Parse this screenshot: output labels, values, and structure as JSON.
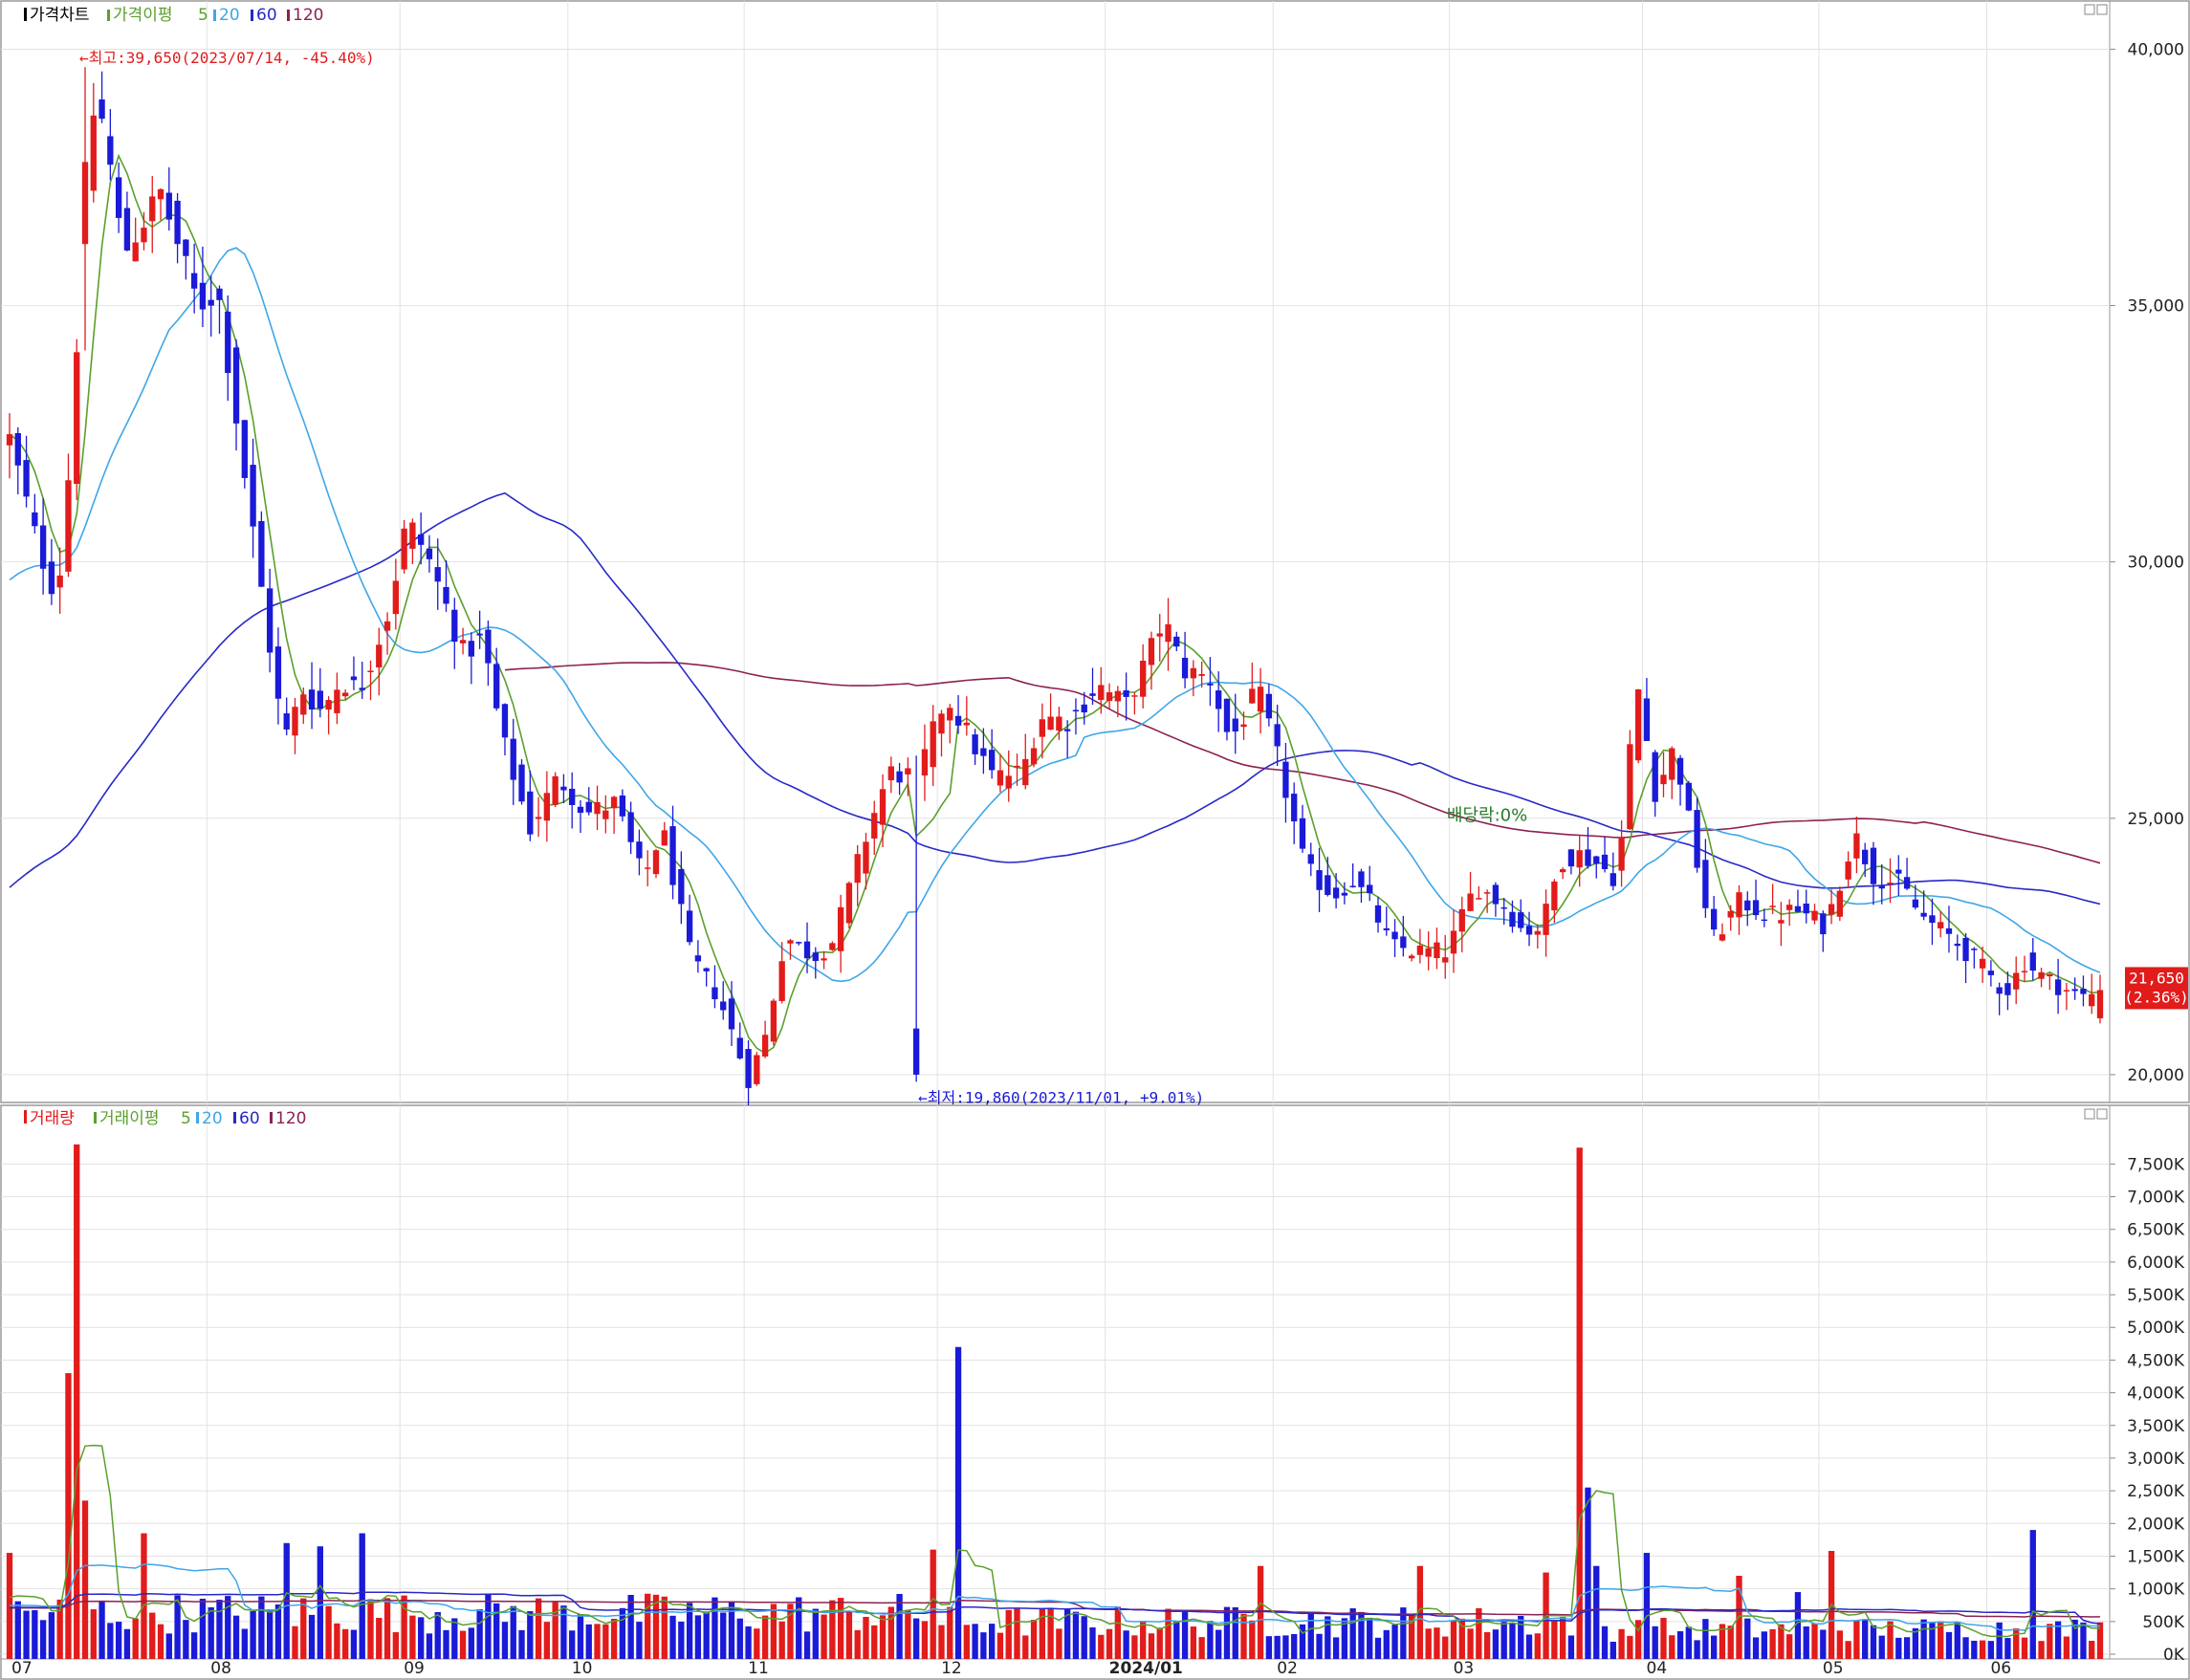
{
  "price_panel": {
    "legend": {
      "main": "가격차트",
      "ma_label": "가격이평",
      "p1": "5",
      "p2": "20",
      "p3": "60",
      "p4": "120"
    },
    "annotations": {
      "high": "←최고:39,650(2023/07/14, -45.40%)",
      "low": "←최저:19,860(2023/11/01, +9.01%)",
      "dividend": "배당락:0%"
    },
    "last_price": {
      "price": "21,650",
      "change": "(2.36%)"
    },
    "y_ticks": [
      "40,000",
      "35,000",
      "30,000",
      "25,000",
      "20,000"
    ]
  },
  "volume_panel": {
    "legend": {
      "main": "거래량",
      "ma_label": "거래이평",
      "p1": "5",
      "p2": "20",
      "p3": "60",
      "p4": "120"
    },
    "y_ticks": [
      "7,500K",
      "7,000K",
      "6,500K",
      "6,000K",
      "5,500K",
      "5,000K",
      "4,500K",
      "4,000K",
      "3,500K",
      "3,000K",
      "2,500K",
      "2,000K",
      "1,500K",
      "1,000K",
      "500K",
      "0K"
    ]
  },
  "x_labels": [
    "07",
    "08",
    "09",
    "10",
    "11",
    "12",
    "2024/01",
    "02",
    "03",
    "04",
    "05",
    "06"
  ],
  "colors": {
    "up": "#e21b1b",
    "down": "#1a1ad8",
    "ma5": "#5aa02c",
    "ma20": "#3fa6e8",
    "ma60": "#2828c8",
    "ma120": "#8b2252",
    "grid": "#e2e2e2",
    "axis": "#8a8a8a"
  },
  "chart_data": {
    "type": "candlestick",
    "title": "",
    "price_range": [
      19700,
      40400
    ],
    "volume_range": [
      0,
      7900
    ],
    "volume_unit": "K",
    "month_labels": [
      "07",
      "08",
      "09",
      "10",
      "11",
      "12",
      "2024/01",
      "02",
      "03",
      "04",
      "05",
      "06"
    ],
    "month_start_index": [
      0,
      23,
      45,
      65,
      85,
      107,
      126,
      146,
      166,
      188,
      208,
      227
    ],
    "candles_count": 250,
    "anchors": [
      [
        0,
        32400
      ],
      [
        3,
        30300
      ],
      [
        5,
        29300
      ],
      [
        6,
        31000
      ],
      [
        8,
        37000
      ],
      [
        9,
        39000
      ],
      [
        10,
        38500
      ],
      [
        12,
        36000
      ],
      [
        16,
        37200
      ],
      [
        19,
        35500
      ],
      [
        20,
        35000
      ],
      [
        22,
        35300
      ],
      [
        25,
        31500
      ],
      [
        29,
        26500
      ],
      [
        31,
        27500
      ],
      [
        33,
        27100
      ],
      [
        35,
        27700
      ],
      [
        37,
        27500
      ],
      [
        40,
        29000
      ],
      [
        42,
        30800
      ],
      [
        44,
        30200
      ],
      [
        48,
        28200
      ],
      [
        50,
        28500
      ],
      [
        52,
        26600
      ],
      [
        55,
        24800
      ],
      [
        58,
        25800
      ],
      [
        61,
        25100
      ],
      [
        64,
        25300
      ],
      [
        67,
        23800
      ],
      [
        69,
        24800
      ],
      [
        72,
        22300
      ],
      [
        75,
        21500
      ],
      [
        77,
        20500
      ],
      [
        78,
        19860
      ],
      [
        80,
        20800
      ],
      [
        82,
        22700
      ],
      [
        85,
        22300
      ],
      [
        87,
        22600
      ],
      [
        91,
        24900
      ],
      [
        93,
        25900
      ],
      [
        96,
        25800
      ],
      [
        99,
        27400
      ],
      [
        102,
        26400
      ],
      [
        104,
        25800
      ],
      [
        107,
        25900
      ],
      [
        109,
        27000
      ],
      [
        112,
        26900
      ],
      [
        115,
        27600
      ],
      [
        118,
        27200
      ],
      [
        120,
        28000
      ],
      [
        122,
        28900
      ],
      [
        124,
        27900
      ],
      [
        127,
        27700
      ],
      [
        129,
        26500
      ],
      [
        132,
        27500
      ],
      [
        134,
        26200
      ],
      [
        137,
        24000
      ],
      [
        140,
        23500
      ],
      [
        142,
        23800
      ],
      [
        144,
        23300
      ],
      [
        146,
        22500
      ],
      [
        149,
        22400
      ],
      [
        152,
        22400
      ],
      [
        155,
        23700
      ],
      [
        158,
        23300
      ],
      [
        160,
        22800
      ],
      [
        162,
        22900
      ],
      [
        164,
        24200
      ],
      [
        166,
        24300
      ],
      [
        168,
        24100
      ],
      [
        170,
        23800
      ],
      [
        172,
        27700
      ],
      [
        174,
        25500
      ],
      [
        176,
        26400
      ],
      [
        178,
        24500
      ],
      [
        180,
        22600
      ],
      [
        183,
        23400
      ],
      [
        186,
        23100
      ],
      [
        189,
        23200
      ],
      [
        192,
        22900
      ],
      [
        195,
        24700
      ],
      [
        197,
        23900
      ],
      [
        200,
        23700
      ],
      [
        202,
        23100
      ],
      [
        205,
        22700
      ],
      [
        208,
        22200
      ],
      [
        211,
        21600
      ],
      [
        213,
        22200
      ],
      [
        215,
        21900
      ],
      [
        217,
        21700
      ],
      [
        219,
        21500
      ],
      [
        221,
        21650
      ]
    ],
    "volume_spikes": [
      [
        6,
        4300
      ],
      [
        7,
        7800
      ],
      [
        8,
        2350
      ],
      [
        100,
        4700
      ],
      [
        166,
        7750
      ],
      [
        167,
        2550
      ],
      [
        168,
        1350
      ],
      [
        0,
        1550
      ],
      [
        14,
        1850
      ],
      [
        29,
        1700
      ],
      [
        33,
        1650
      ],
      [
        37,
        1850
      ],
      [
        98,
        1600
      ],
      [
        173,
        1550
      ],
      [
        214,
        1900
      ],
      [
        193,
        1580
      ],
      [
        149,
        1350
      ],
      [
        132,
        1350
      ],
      [
        189,
        950
      ],
      [
        183,
        1200
      ],
      [
        162,
        1250
      ]
    ],
    "annotations": [
      {
        "text_ref": "high",
        "index": 7,
        "price": 39650
      },
      {
        "text_ref": "low",
        "index": 78,
        "price": 19860
      }
    ]
  }
}
